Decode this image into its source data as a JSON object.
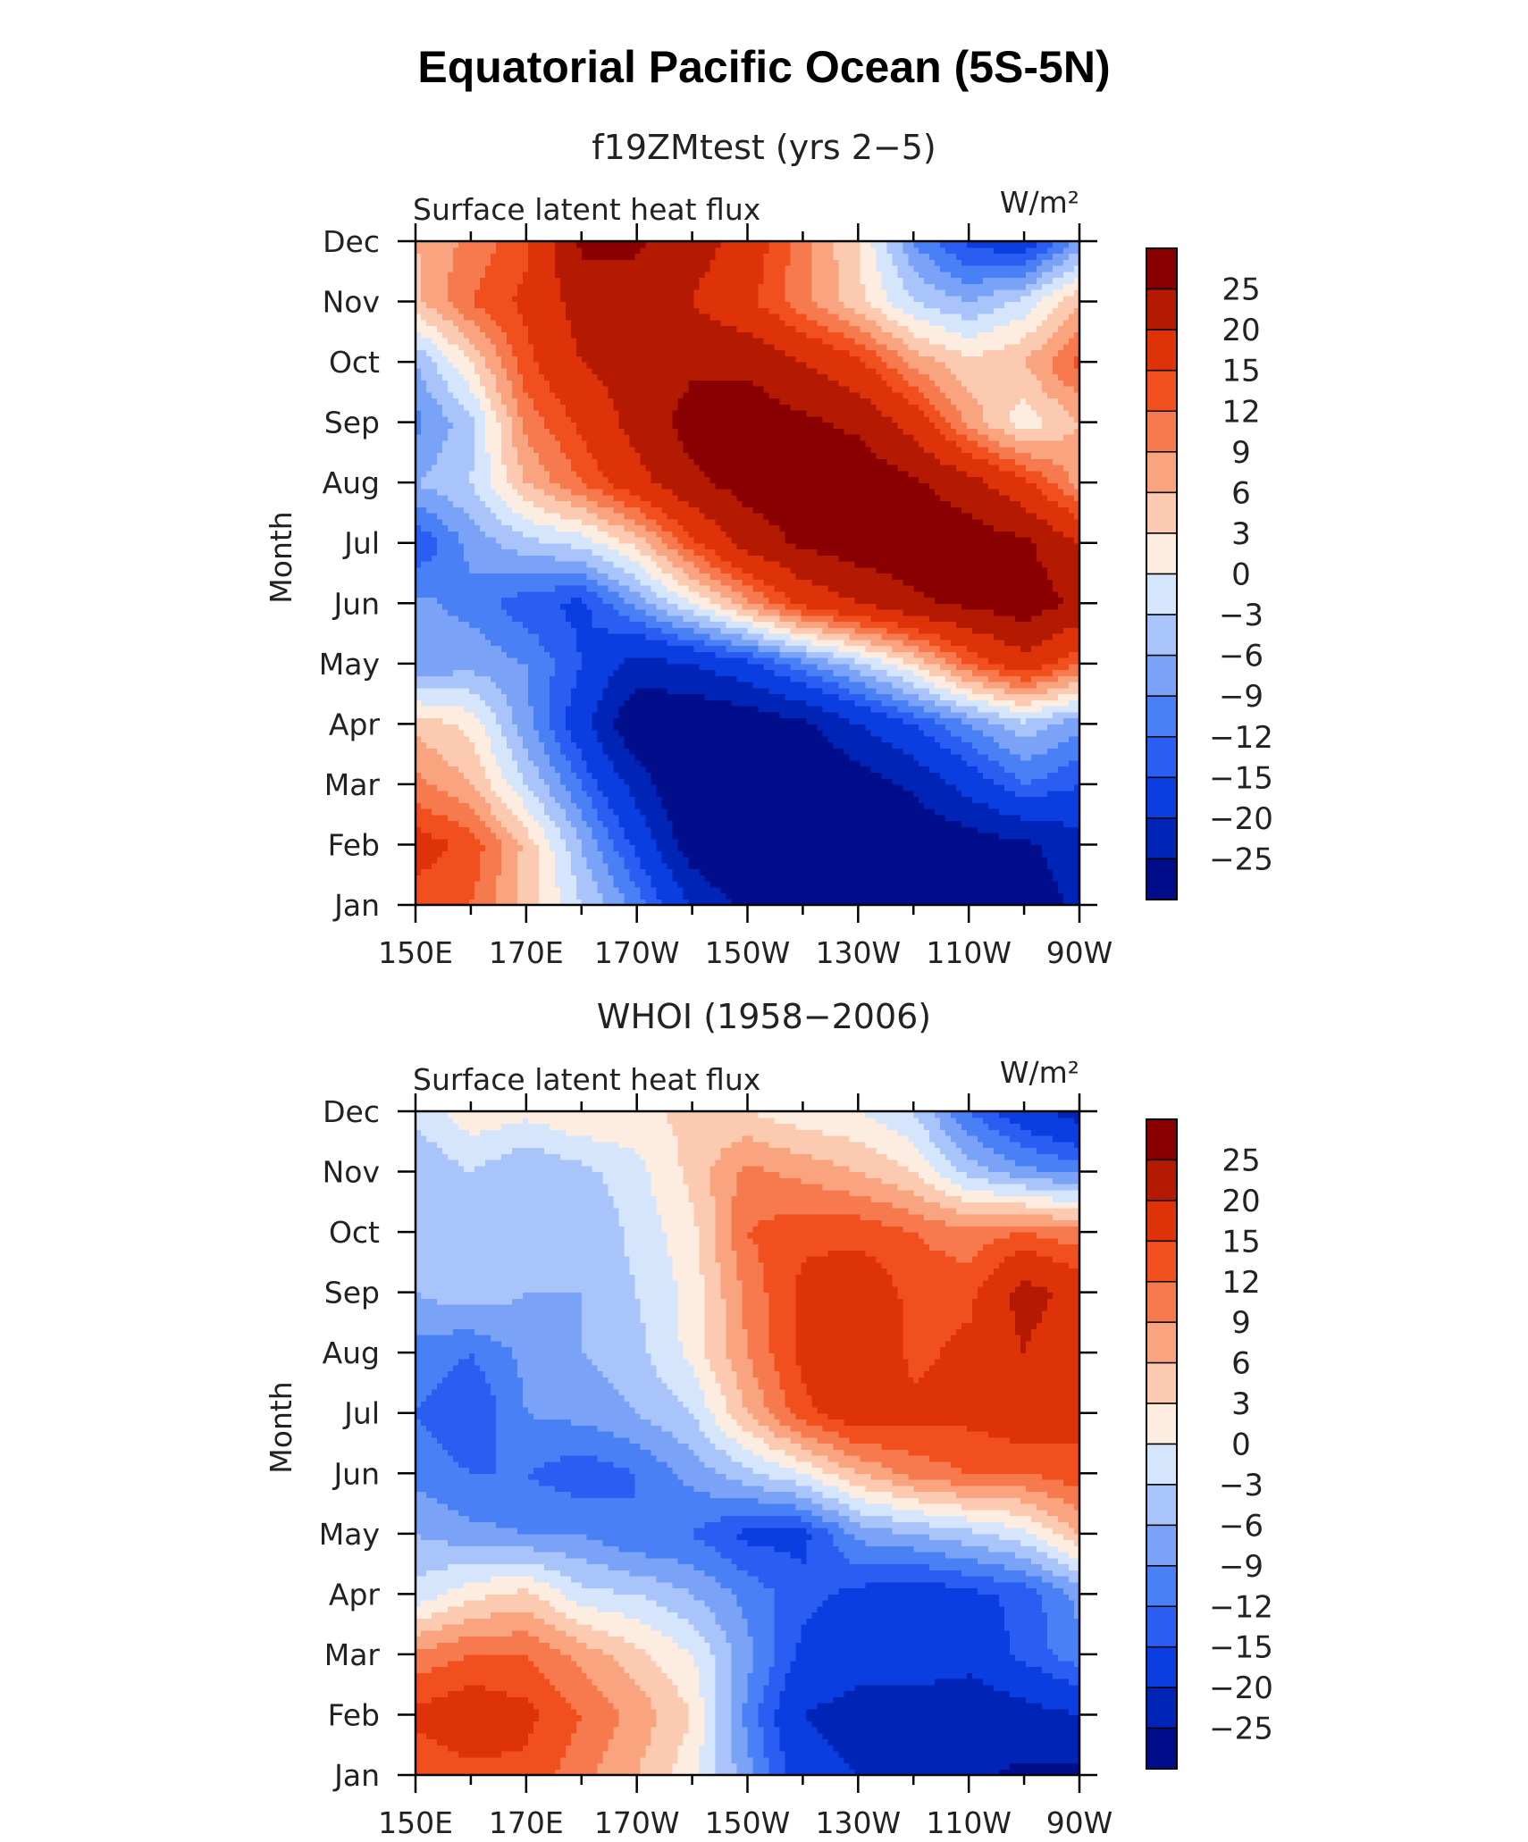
{
  "title": "Equatorial Pacific Ocean (5S-5N)",
  "colors": [
    "#000e8c",
    "#0024b5",
    "#0a3ee0",
    "#2a5ef2",
    "#4a80f5",
    "#7aa2f7",
    "#a8c4fa",
    "#d5e5fc",
    "#fdece0",
    "#fccab0",
    "#f9a47e",
    "#f77a4e",
    "#f24f1e",
    "#de3308",
    "#b41a02",
    "#8a0000"
  ],
  "colorbar": {
    "labels": [
      "25",
      "20",
      "15",
      "12",
      "9",
      "6",
      "3",
      "0",
      "−3",
      "−6",
      "−9",
      "−12",
      "−15",
      "−20",
      "−25"
    ]
  },
  "chart_data": [
    {
      "type": "heatmap",
      "title": "f19ZMtest (yrs 2−5)",
      "variable": "Surface latent heat flux",
      "units": "W/m²",
      "ylabel": "Month",
      "x_ticks": [
        "150E",
        "170E",
        "170W",
        "150W",
        "130W",
        "110W",
        "90W"
      ],
      "y_ticks": [
        "Jan",
        "Feb",
        "Mar",
        "Apr",
        "May",
        "Jun",
        "Jul",
        "Aug",
        "Sep",
        "Oct",
        "Nov",
        "Dec"
      ],
      "x_lon": [
        150,
        160,
        170,
        180,
        190,
        200,
        210,
        220,
        230,
        240,
        250,
        260,
        270
      ],
      "levels": [
        -25,
        -20,
        -15,
        -12,
        -9,
        -6,
        -3,
        0,
        3,
        6,
        9,
        12,
        15,
        20,
        25
      ],
      "values": [
        [
          13,
          12,
          5,
          -3,
          -10,
          -20,
          -27,
          -30,
          -30,
          -30,
          -30,
          -28,
          -24
        ],
        [
          17,
          14,
          5,
          -6,
          -16,
          -28,
          -32,
          -32,
          -32,
          -30,
          -28,
          -26,
          -22
        ],
        [
          10,
          6,
          -3,
          -12,
          -22,
          -32,
          -32,
          -31,
          -28,
          -24,
          -18,
          -12,
          -15
        ],
        [
          5,
          2,
          -8,
          -18,
          -30,
          -30,
          -29,
          -26,
          -20,
          -15,
          -9,
          -4,
          -8
        ],
        [
          -9,
          -7,
          -9,
          -15,
          -22,
          -20,
          -16,
          -10,
          -4,
          3,
          12,
          18,
          12
        ],
        [
          -8,
          -10,
          -14,
          -16,
          -8,
          0,
          8,
          16,
          20,
          24,
          26,
          28,
          24
        ],
        [
          -15,
          -8,
          -4,
          -2,
          4,
          14,
          22,
          26,
          28,
          28,
          28,
          26,
          20
        ],
        [
          -6,
          -3,
          6,
          12,
          18,
          24,
          27,
          28,
          28,
          26,
          22,
          16,
          8
        ],
        [
          -10,
          -4,
          10,
          16,
          22,
          27,
          28,
          26,
          24,
          18,
          8,
          1,
          6
        ],
        [
          -6,
          3,
          14,
          20,
          22,
          24,
          24,
          20,
          16,
          8,
          4,
          6,
          13
        ],
        [
          5,
          12,
          16,
          22,
          22,
          20,
          16,
          10,
          4,
          -3,
          -6,
          -2,
          6
        ],
        [
          6,
          10,
          14,
          26,
          26,
          22,
          18,
          10,
          3,
          -9,
          -16,
          -18,
          -8
        ]
      ]
    },
    {
      "type": "heatmap",
      "title": "WHOI (1958−2006)",
      "variable": "Surface latent heat flux",
      "units": "W/m²",
      "ylabel": "Month",
      "x_ticks": [
        "150E",
        "170E",
        "170W",
        "150W",
        "130W",
        "110W",
        "90W"
      ],
      "y_ticks": [
        "Jan",
        "Feb",
        "Mar",
        "Apr",
        "May",
        "Jun",
        "Jul",
        "Aug",
        "Sep",
        "Oct",
        "Nov",
        "Dec"
      ],
      "x_lon": [
        150,
        160,
        170,
        180,
        190,
        200,
        210,
        220,
        230,
        240,
        250,
        260,
        270
      ],
      "levels": [
        -25,
        -20,
        -15,
        -12,
        -9,
        -6,
        -3,
        0,
        3,
        6,
        9,
        12,
        15,
        20,
        25
      ],
      "values": [
        [
          12,
          14,
          14,
          10,
          6,
          1,
          -8,
          -18,
          -20,
          -22,
          -24,
          -26,
          -26
        ],
        [
          16,
          18,
          16,
          12,
          8,
          3,
          -10,
          -20,
          -22,
          -24,
          -24,
          -22,
          -20
        ],
        [
          10,
          12,
          12,
          8,
          4,
          0,
          -8,
          -16,
          -18,
          -16,
          -18,
          -14,
          -10
        ],
        [
          -2,
          2,
          4,
          -2,
          -3,
          -6,
          -10,
          -14,
          -16,
          -18,
          -16,
          -14,
          -8
        ],
        [
          -6,
          -8,
          -9,
          -9,
          -12,
          -12,
          -16,
          -16,
          -8,
          -6,
          -4,
          -1,
          6
        ],
        [
          -10,
          -12,
          -12,
          -14,
          -12,
          -8,
          -4,
          0,
          6,
          10,
          12,
          12,
          14
        ],
        [
          -12,
          -15,
          -9,
          -8,
          -6,
          -3,
          6,
          14,
          18,
          16,
          16,
          18,
          16
        ],
        [
          -10,
          -12,
          -8,
          -6,
          -4,
          1,
          9,
          16,
          20,
          14,
          16,
          20,
          16
        ],
        [
          -6,
          -4,
          -6,
          -6,
          -3,
          1,
          10,
          16,
          18,
          14,
          14,
          22,
          18
        ],
        [
          -4,
          -3,
          -6,
          -6,
          -2,
          2,
          12,
          14,
          14,
          12,
          10,
          12,
          10
        ],
        [
          -6,
          -3,
          -6,
          -4,
          -1,
          4,
          10,
          8,
          6,
          3,
          -4,
          -8,
          -10
        ],
        [
          -2,
          2,
          1,
          3,
          2,
          4,
          3,
          1,
          0,
          -3,
          -12,
          -18,
          -22
        ]
      ]
    }
  ]
}
